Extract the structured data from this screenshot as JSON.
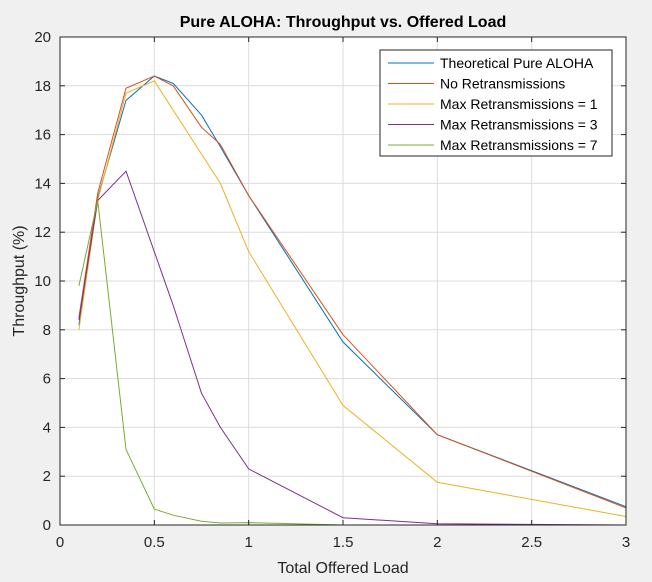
{
  "chart_data": {
    "type": "line",
    "title": "Pure ALOHA: Throughput vs. Offered Load",
    "xlabel": "Total Offered Load",
    "ylabel": "Throughput (%)",
    "xlim": [
      0,
      3
    ],
    "ylim": [
      0,
      20
    ],
    "xticks": [
      0,
      0.5,
      1,
      1.5,
      2,
      2.5,
      3
    ],
    "yticks": [
      0,
      2,
      4,
      6,
      8,
      10,
      12,
      14,
      16,
      18,
      20
    ],
    "xtick_labels": [
      "0",
      "0.5",
      "1",
      "1.5",
      "2",
      "2.5",
      "3"
    ],
    "ytick_labels": [
      "0",
      "2",
      "4",
      "6",
      "8",
      "10",
      "12",
      "14",
      "16",
      "18",
      "20"
    ],
    "grid": true,
    "legend_position": "top-right",
    "x": [
      0.1,
      0.2,
      0.35,
      0.5,
      0.6,
      0.75,
      0.85,
      1.0,
      1.5,
      2.0,
      3.0
    ],
    "series": [
      {
        "name": "Theoretical Pure ALOHA",
        "color": "#0072bd",
        "values": [
          8.2,
          13.4,
          17.4,
          18.4,
          18.1,
          16.8,
          15.5,
          13.5,
          7.5,
          3.7,
          0.75
        ]
      },
      {
        "name": "No Retransmissions",
        "color": "#d95319",
        "values": [
          8.5,
          13.6,
          17.9,
          18.4,
          18.0,
          16.3,
          15.6,
          13.5,
          7.8,
          3.7,
          0.7
        ]
      },
      {
        "name": "Max Retransmissions = 1",
        "color": "#edb120",
        "values": [
          8.0,
          13.3,
          17.7,
          18.2,
          17.0,
          15.2,
          14.0,
          11.2,
          4.9,
          1.75,
          0.35
        ]
      },
      {
        "name": "Max Retransmissions = 3",
        "color": "#7e2f8e",
        "values": [
          8.4,
          13.3,
          14.5,
          11.2,
          9.0,
          5.4,
          4.0,
          2.3,
          0.3,
          0.05,
          0.0
        ]
      },
      {
        "name": "Max Retransmissions = 7",
        "color": "#77ac30",
        "values": [
          9.8,
          13.3,
          3.1,
          0.65,
          0.4,
          0.15,
          0.08,
          0.1,
          0.0,
          0.0,
          0.0
        ]
      }
    ]
  }
}
